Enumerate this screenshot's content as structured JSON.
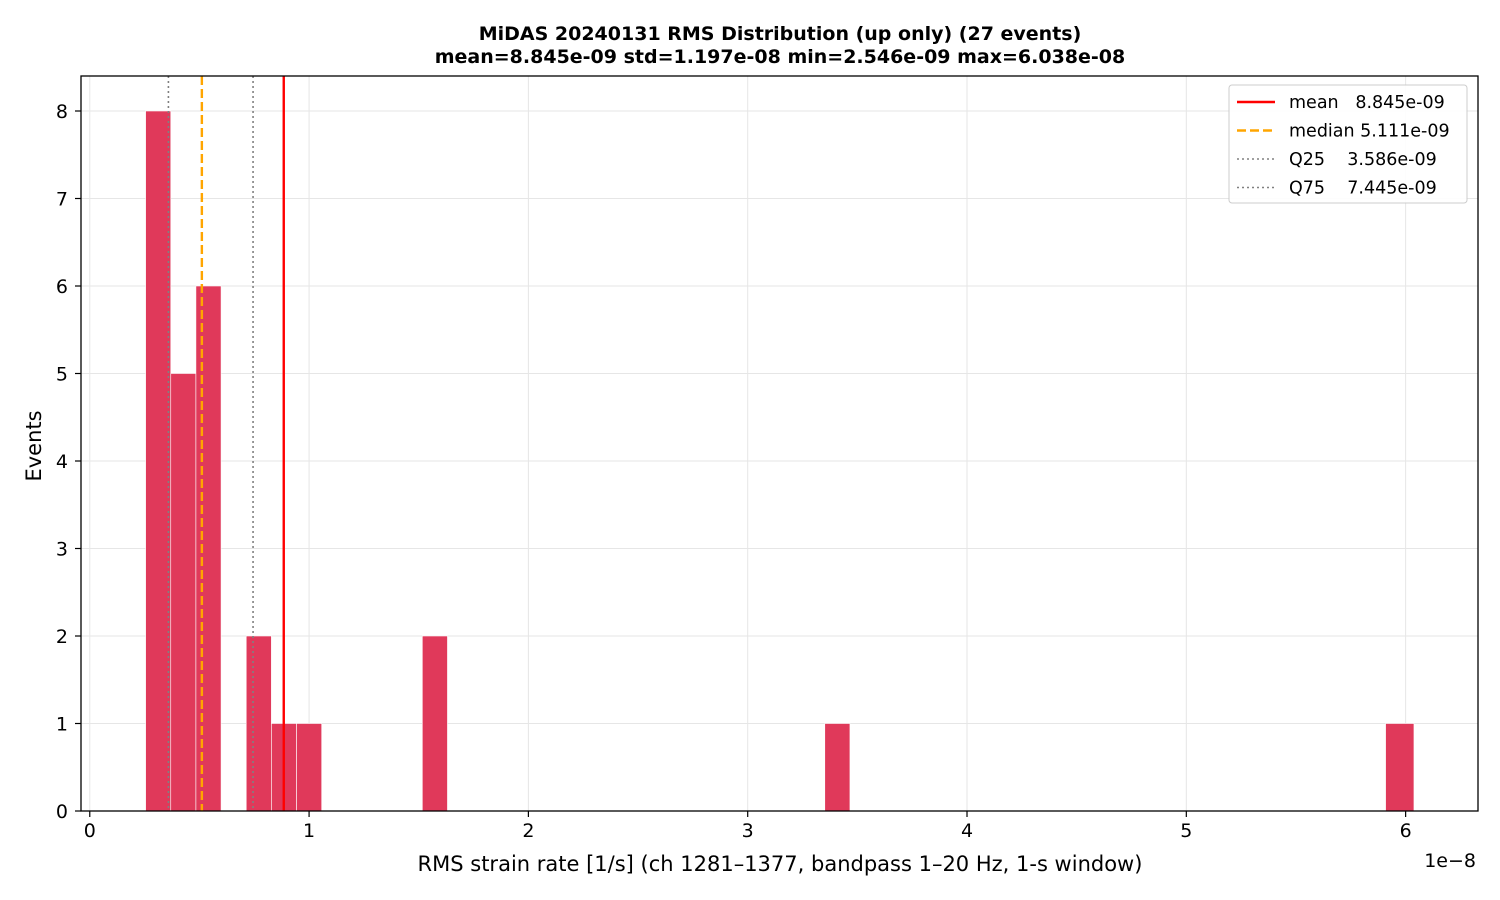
{
  "chart_data": {
    "type": "bar",
    "title_line1": "MiDAS 20240131  RMS Distribution  (up only)  (27 events)",
    "title_line2": "mean=8.845e-09  std=1.197e-08  min=2.546e-09  max=6.038e-08",
    "xlabel": "RMS strain rate [1/s]  (ch 1281–1377, bandpass 1–20 Hz, 1-s window)",
    "ylabel": "Events",
    "x_offset_label": "1e−8",
    "x_scale": 1e-08,
    "xlim": [
      -0.04,
      6.33
    ],
    "ylim": [
      0,
      8.4
    ],
    "x_ticks": [
      0,
      1,
      2,
      3,
      4,
      5,
      6
    ],
    "x_tick_labels": [
      "0",
      "1",
      "2",
      "3",
      "4",
      "5",
      "6"
    ],
    "y_ticks": [
      0,
      1,
      2,
      3,
      4,
      5,
      6,
      7,
      8
    ],
    "y_tick_labels": [
      "0",
      "1",
      "2",
      "3",
      "4",
      "5",
      "6",
      "7",
      "8"
    ],
    "grid": true,
    "bar_color": "#e0395a",
    "bins": [
      {
        "x0": 0.2546,
        "x1": 0.3693,
        "count": 8
      },
      {
        "x0": 0.3693,
        "x1": 0.484,
        "count": 5
      },
      {
        "x0": 0.484,
        "x1": 0.5987,
        "count": 6
      },
      {
        "x0": 0.7134,
        "x1": 0.8281,
        "count": 2
      },
      {
        "x0": 0.8281,
        "x1": 0.9428,
        "count": 1
      },
      {
        "x0": 0.9428,
        "x1": 1.0575,
        "count": 1
      },
      {
        "x0": 1.5163,
        "x1": 1.631,
        "count": 2
      },
      {
        "x0": 3.3515,
        "x1": 3.4662,
        "count": 1
      },
      {
        "x0": 5.9086,
        "x1": 6.038,
        "count": 1
      }
    ],
    "reference_lines": [
      {
        "key": "mean",
        "label": "mean   8.845e-09",
        "value": 0.8845,
        "color": "#ff0000",
        "style": "solid"
      },
      {
        "key": "median",
        "label": "median 5.111e-09",
        "value": 0.5111,
        "color": "#ffa500",
        "style": "dashed"
      },
      {
        "key": "q25",
        "label": "Q25    3.586e-09",
        "value": 0.3586,
        "color": "#808080",
        "style": "dotted"
      },
      {
        "key": "q75",
        "label": "Q75    7.445e-09",
        "value": 0.7445,
        "color": "#808080",
        "style": "dotted"
      }
    ],
    "legend_position": "top-right"
  }
}
